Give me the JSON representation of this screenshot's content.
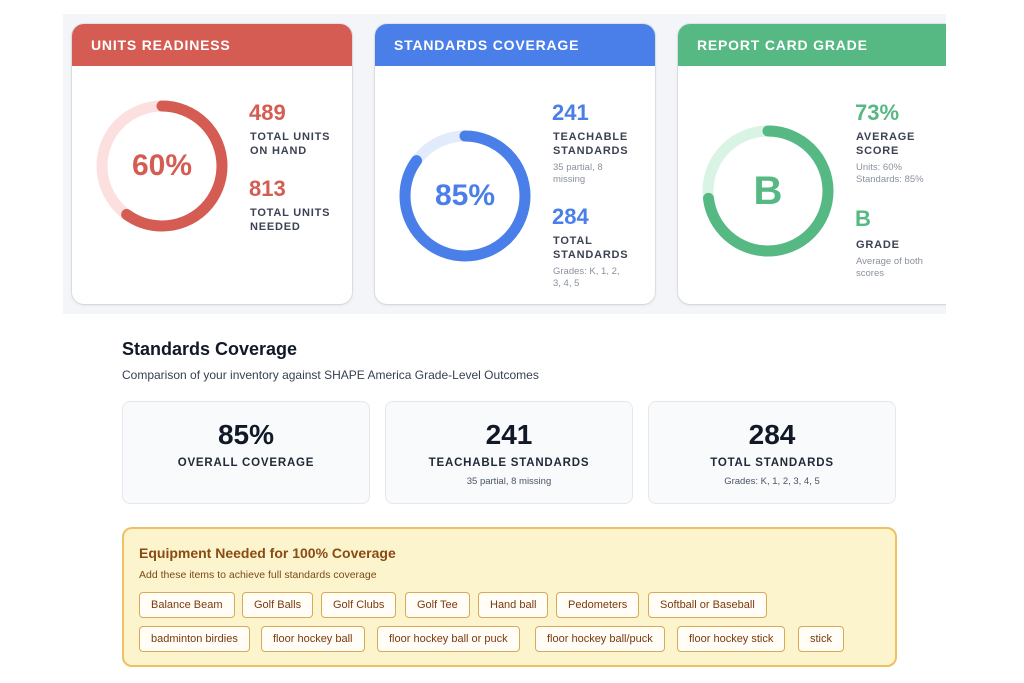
{
  "colors": {
    "red": "#d45c52",
    "blue": "#4a7ee8",
    "green": "#56b883",
    "red_track": "#fbe0df",
    "blue_track": "#e1ebfb",
    "green_track": "#d9f4e4"
  },
  "cards": [
    {
      "title": "UNITS READINESS",
      "ring_value": "60%",
      "progress": 0.6,
      "stat1_value": "489",
      "stat1_label_line1": "TOTAL UNITS",
      "stat1_label_line2": "ON HAND",
      "stat2_value": "813",
      "stat2_label_line1": "TOTAL UNITS",
      "stat2_label_line2": "NEEDED"
    },
    {
      "title": "STANDARDS COVERAGE",
      "ring_value": "85%",
      "progress": 0.85,
      "stat1_value": "241",
      "stat1_label_line1": "TEACHABLE",
      "stat1_label_line2": "STANDARDS",
      "stat1_sub_line1": "35 partial, 8",
      "stat1_sub_line2": "missing",
      "stat2_value": "284",
      "stat2_label_line1": "TOTAL",
      "stat2_label_line2": "STANDARDS",
      "stat2_sub_line1": "Grades: K, 1, 2,",
      "stat2_sub_line2": "3, 4, 5"
    },
    {
      "title": "REPORT CARD GRADE",
      "ring_value": "B",
      "progress": 0.73,
      "stat1_value": "73%",
      "stat1_label_line1": "AVERAGE",
      "stat1_label_line2": "SCORE",
      "stat1_sub_line1": "Units: 60%",
      "stat1_sub_line2": "Standards: 85%",
      "stat2_value": "B",
      "stat2_label_line1": "GRADE",
      "stat2_sub_line1": "Average of both",
      "stat2_sub_line2": "scores"
    }
  ],
  "section": {
    "title": "Standards Coverage",
    "subtitle": "Comparison of your inventory against SHAPE America Grade-Level Outcomes"
  },
  "summary": [
    {
      "value": "85%",
      "label": "OVERALL COVERAGE",
      "sub": ""
    },
    {
      "value": "241",
      "label": "TEACHABLE STANDARDS",
      "sub": "35 partial, 8 missing"
    },
    {
      "value": "284",
      "label": "TOTAL STANDARDS",
      "sub": "Grades: K, 1, 2, 3, 4, 5"
    }
  ],
  "equipment": {
    "title": "Equipment Needed for 100% Coverage",
    "subtitle": "Add these items to achieve full standards coverage",
    "items": [
      "Balance Beam",
      "Golf Balls",
      "Golf Clubs",
      "Golf Tee",
      "Hand ball",
      "Pedometers",
      "Softball or Baseball",
      "badminton birdies",
      "floor hockey ball",
      "floor hockey ball or puck",
      "floor hockey ball/puck",
      "floor hockey stick",
      "stick"
    ]
  }
}
